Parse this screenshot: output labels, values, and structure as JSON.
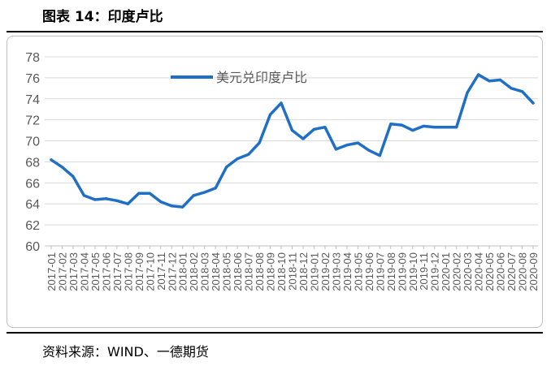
{
  "header": {
    "title": "图表 14：印度卢比"
  },
  "footer": {
    "source": "资料来源：WIND、一德期货"
  },
  "chart_data": {
    "type": "line",
    "title": "",
    "xlabel": "",
    "ylabel": "",
    "ylim": [
      60,
      78
    ],
    "yticks": [
      60,
      62,
      64,
      66,
      68,
      70,
      72,
      74,
      76,
      78
    ],
    "grid": "horizontal",
    "legend": "top-center",
    "line_color": "#1f6fc5",
    "categories": [
      "2017-01",
      "2017-02",
      "2017-03",
      "2017-04",
      "2017-05",
      "2017-06",
      "2017-07",
      "2017-08",
      "2017-09",
      "2017-10",
      "2017-11",
      "2017-12",
      "2018-01",
      "2018-02",
      "2018-03",
      "2018-04",
      "2018-05",
      "2018-06",
      "2018-07",
      "2018-08",
      "2018-09",
      "2018-10",
      "2018-11",
      "2018-12",
      "2019-01",
      "2019-02",
      "2019-03",
      "2019-04",
      "2019-05",
      "2019-06",
      "2019-07",
      "2019-08",
      "2019-09",
      "2019-10",
      "2019-11",
      "2019-12",
      "2020-01",
      "2020-02",
      "2020-03",
      "2020-04",
      "2020-05",
      "2020-06",
      "2020-07",
      "2020-08",
      "2020-09"
    ],
    "series": [
      {
        "name": "美元兑印度卢比",
        "values": [
          68.2,
          67.5,
          66.6,
          64.8,
          64.4,
          64.5,
          64.3,
          64.0,
          65.0,
          65.0,
          64.2,
          63.8,
          63.7,
          64.8,
          65.1,
          65.5,
          67.5,
          68.3,
          68.7,
          69.8,
          72.5,
          73.6,
          71.0,
          70.2,
          71.1,
          71.3,
          69.2,
          69.6,
          69.8,
          69.1,
          68.6,
          71.6,
          71.5,
          71.0,
          71.4,
          71.3,
          71.3,
          71.3,
          74.6,
          76.3,
          75.7,
          75.8,
          75.0,
          74.7,
          73.6
        ]
      }
    ]
  }
}
